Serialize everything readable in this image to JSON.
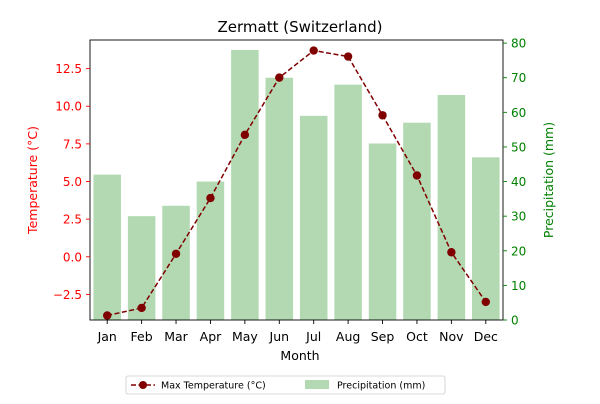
{
  "chart_data": {
    "type": "bar+line",
    "title": "Zermatt (Switzerland)",
    "xlabel": "Month",
    "categories": [
      "Jan",
      "Feb",
      "Mar",
      "Apr",
      "May",
      "Jun",
      "Jul",
      "Aug",
      "Sep",
      "Oct",
      "Nov",
      "Dec"
    ],
    "left_axis": {
      "label": "Temperature (°C)",
      "color": "#ff0000",
      "ylim": [
        -4.2,
        14.4
      ],
      "ticks": [
        -2.5,
        0.0,
        2.5,
        5.0,
        7.5,
        10.0,
        12.5
      ],
      "tick_labels": [
        "−2.5",
        "0.0",
        "2.5",
        "5.0",
        "7.5",
        "10.0",
        "12.5"
      ]
    },
    "right_axis": {
      "label": "Precipitation (mm)",
      "color": "#008000",
      "ylim": [
        0,
        80.9
      ],
      "ticks": [
        0,
        10,
        20,
        30,
        40,
        50,
        60,
        70,
        80
      ],
      "tick_labels": [
        "0",
        "10",
        "20",
        "30",
        "40",
        "50",
        "60",
        "70",
        "80"
      ]
    },
    "series": [
      {
        "name": "Max Temperature (°C)",
        "kind": "line",
        "axis": "left",
        "color": "#800000",
        "values": [
          -3.9,
          -3.4,
          0.2,
          3.9,
          8.1,
          11.9,
          13.7,
          13.3,
          9.4,
          5.4,
          0.3,
          -3.0
        ]
      },
      {
        "name": "Precipitation (mm)",
        "kind": "bar",
        "axis": "right",
        "color": "#b2d9b2",
        "values": [
          42,
          30,
          33,
          40,
          78,
          70,
          59,
          68,
          51,
          57,
          65,
          47
        ]
      }
    ],
    "legend": {
      "position": "bottom-center",
      "entries": [
        "Max Temperature (°C)",
        "Precipitation (mm)"
      ]
    },
    "grid": false
  }
}
